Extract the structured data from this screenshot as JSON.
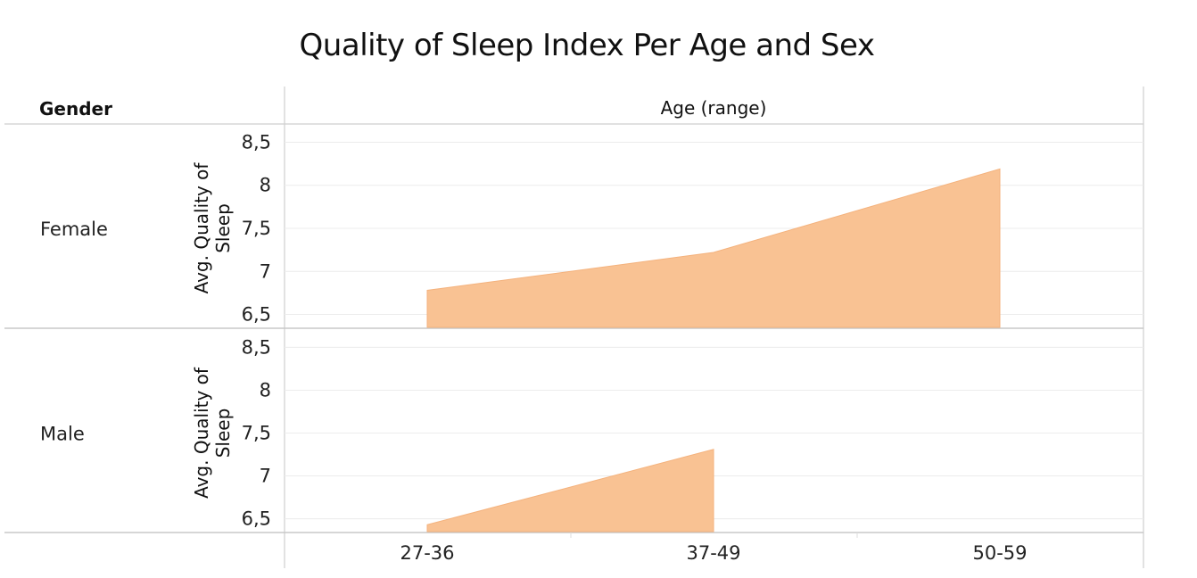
{
  "chart_data": {
    "type": "area",
    "title": "Quality of Sleep Index Per Age and Sex",
    "row_header": "Gender",
    "column_header": "Age (range)",
    "ylabel": "Avg. Quality of Sleep",
    "categories": [
      "27-36",
      "37-49",
      "50-59"
    ],
    "ylim": [
      6.35,
      8.65
    ],
    "yticks": [
      6.5,
      7,
      7.5,
      8,
      8.5
    ],
    "ytick_labels": [
      "6,5",
      "7",
      "7,5",
      "8",
      "8,5"
    ],
    "grid": true,
    "color": "#f9c293",
    "series": [
      {
        "name": "Female",
        "values": [
          6.78,
          7.22,
          8.19
        ]
      },
      {
        "name": "Male",
        "values": [
          6.43,
          7.31,
          null
        ]
      }
    ]
  }
}
